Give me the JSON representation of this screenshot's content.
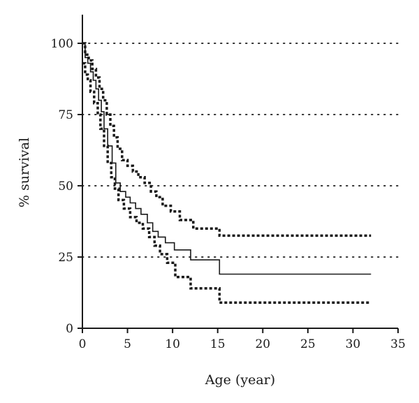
{
  "chart_data": {
    "type": "line",
    "xlabel": "Age (year)",
    "ylabel": "% survival",
    "xlim": [
      0,
      35
    ],
    "ylim": [
      0,
      100
    ],
    "xticks": [
      "0",
      "5",
      "10",
      "15",
      "20",
      "25",
      "30",
      "35"
    ],
    "yticks": [
      "0",
      "25",
      "50",
      "75",
      "100"
    ],
    "grid": "horizontal dotted at 25, 50, 75, 100",
    "series": [
      {
        "style": "solid step",
        "x": [
          0,
          0.3,
          0.6,
          0.9,
          1.2,
          1.5,
          1.8,
          2.1,
          2.4,
          2.8,
          3.3,
          3.7,
          4.2,
          4.8,
          5.3,
          5.9,
          6.5,
          7.2,
          7.8,
          8.4,
          9.2,
          10.2,
          12,
          15.2,
          32
        ],
        "y": [
          100,
          95,
          93,
          90,
          87,
          84,
          80,
          76,
          70,
          64,
          58,
          51,
          48,
          46,
          44,
          42,
          40,
          37,
          34,
          32,
          30,
          27.5,
          24,
          19,
          19
        ]
      },
      {
        "style": "dotted step (upper confidence bound)",
        "x": [
          0,
          0.3,
          0.7,
          1.1,
          1.5,
          1.9,
          2.3,
          2.7,
          3.1,
          3.5,
          3.9,
          4.4,
          5.0,
          5.6,
          6.2,
          6.9,
          7.6,
          8.2,
          8.9,
          9.8,
          10.8,
          12.3,
          15.2,
          32
        ],
        "y": [
          100,
          96,
          94,
          91,
          88,
          84,
          80,
          75,
          71,
          67,
          63,
          59,
          57,
          55,
          53,
          51,
          48,
          46,
          43,
          41,
          38,
          35,
          32.5,
          32.5
        ]
      },
      {
        "style": "dotted step (lower confidence bound)",
        "x": [
          0,
          0.3,
          0.6,
          0.9,
          1.3,
          1.7,
          2.0,
          2.4,
          2.8,
          3.2,
          3.6,
          4.0,
          4.6,
          5.3,
          6.0,
          6.7,
          7.4,
          8.0,
          8.6,
          9.4,
          10.3,
          12.0,
          15.2,
          32
        ],
        "y": [
          93,
          89,
          87,
          83,
          79,
          75,
          70,
          64,
          58,
          53,
          49,
          45,
          42,
          39,
          37,
          35,
          32,
          29,
          26,
          23,
          18,
          14,
          9,
          9
        ]
      }
    ]
  }
}
